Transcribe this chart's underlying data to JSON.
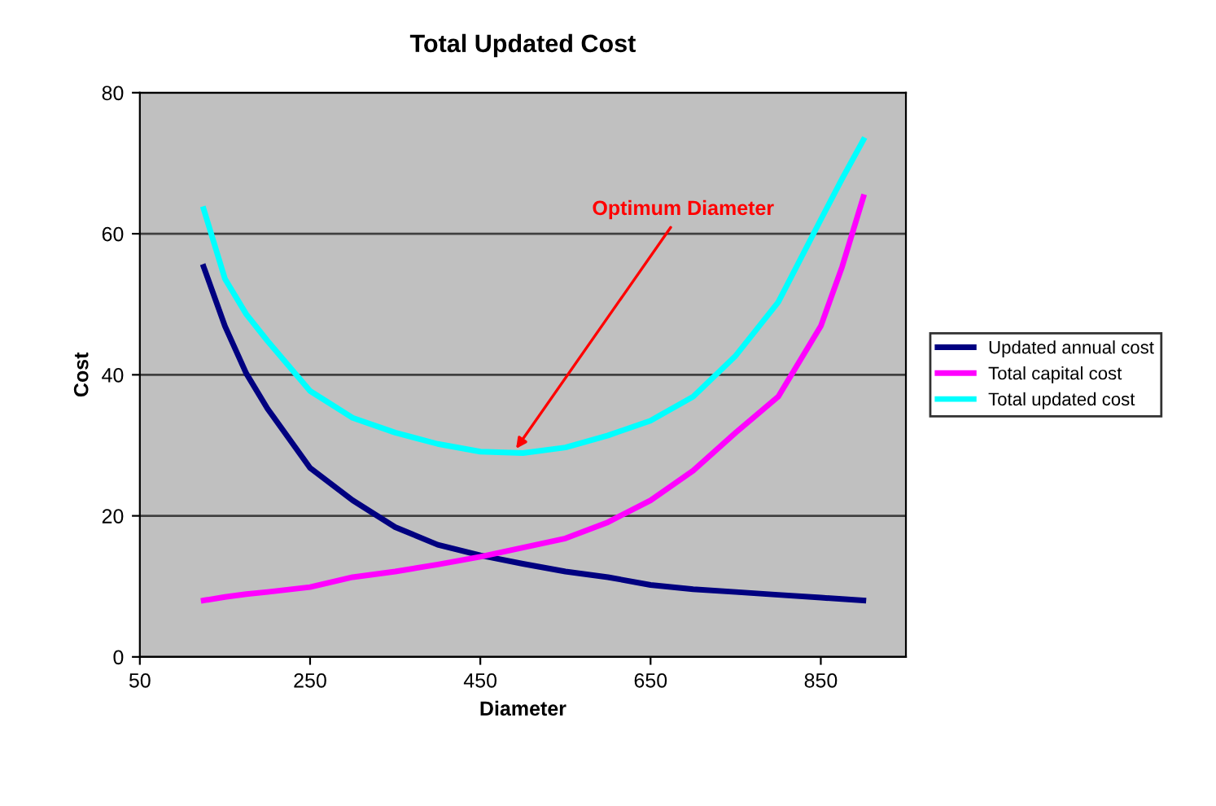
{
  "chart_data": {
    "type": "line",
    "title": "Total Updated Cost",
    "xlabel": "Diameter",
    "ylabel": "Cost",
    "x": [
      125,
      150,
      175,
      200,
      250,
      300,
      350,
      400,
      450,
      500,
      550,
      600,
      650,
      700,
      750,
      800,
      850,
      875,
      900
    ],
    "series": [
      {
        "name": "Updated annual cost",
        "color": "#000080",
        "values": [
          55.3,
          46.9,
          40.2,
          35.2,
          26.8,
          22.2,
          18.4,
          15.9,
          14.4,
          13.2,
          12.1,
          11.3,
          10.2,
          9.6,
          9.2,
          8.8,
          8.4,
          8.2,
          8.0
        ]
      },
      {
        "name": "Total capital cost",
        "color": "#ff00ff",
        "values": [
          8.0,
          8.5,
          8.9,
          9.2,
          9.9,
          11.3,
          12.1,
          13.1,
          14.2,
          15.5,
          16.8,
          19.1,
          22.2,
          26.4,
          31.8,
          36.9,
          46.9,
          55.3,
          65.2
        ]
      },
      {
        "name": "Total updated cost",
        "color": "#00ffff",
        "values": [
          63.5,
          53.6,
          48.6,
          44.8,
          37.7,
          33.9,
          31.8,
          30.2,
          29.1,
          28.9,
          29.7,
          31.4,
          33.5,
          36.9,
          42.7,
          50.3,
          62.0,
          67.8,
          73.3
        ]
      }
    ],
    "xlim": [
      50,
      950
    ],
    "xticks": [
      50,
      250,
      450,
      650,
      850
    ],
    "ylim": [
      0,
      80
    ],
    "yticks": [
      0,
      20,
      40,
      60,
      80
    ],
    "grid": "y",
    "legend": "right",
    "marker": "none",
    "line_style": "solid",
    "annotations": [
      {
        "text": "Optimum Diameter",
        "x": 489,
        "y": 29
      }
    ]
  }
}
